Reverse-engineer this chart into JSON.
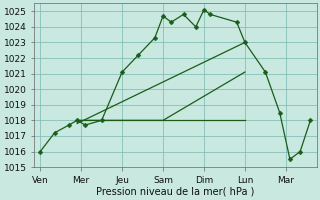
{
  "background_color": "#c8e8e0",
  "grid_color": "#7ab8b0",
  "line_color": "#1a5c1a",
  "marker_color": "#1a5c1a",
  "x_labels": [
    "Ven",
    "Mer",
    "Jeu",
    "Sam",
    "Dim",
    "Lun",
    "Mar"
  ],
  "x_tick_pos": [
    0,
    1,
    2,
    3,
    4,
    5,
    6
  ],
  "ylabel": "Pression niveau de la mer( hPa )",
  "ylim": [
    1015,
    1025.5
  ],
  "yticks": [
    1015,
    1016,
    1017,
    1018,
    1019,
    1020,
    1021,
    1022,
    1023,
    1024,
    1025
  ],
  "line_main": {
    "x": [
      0.0,
      0.35,
      0.7,
      0.9,
      1.1,
      1.5,
      2.0,
      2.4,
      2.8,
      3.0,
      3.2,
      3.5,
      3.8,
      4.0,
      4.15,
      4.8,
      5.0,
      5.5,
      5.85,
      6.1,
      6.35,
      6.6
    ],
    "y": [
      1016.0,
      1017.2,
      1017.7,
      1018.0,
      1017.7,
      1018.0,
      1021.1,
      1022.2,
      1023.3,
      1024.7,
      1024.3,
      1024.8,
      1024.0,
      1025.1,
      1024.8,
      1024.3,
      1023.0,
      1021.1,
      1018.5,
      1015.5,
      1016.0,
      1018.0
    ]
  },
  "line_fan1": {
    "x": [
      0.9,
      5.0
    ],
    "y": [
      1017.8,
      1023.0
    ]
  },
  "line_fan2": {
    "x": [
      0.9,
      3.0,
      5.0
    ],
    "y": [
      1018.0,
      1018.0,
      1021.1
    ]
  },
  "line_fan3": {
    "x": [
      0.9,
      5.0
    ],
    "y": [
      1018.0,
      1018.0
    ]
  }
}
